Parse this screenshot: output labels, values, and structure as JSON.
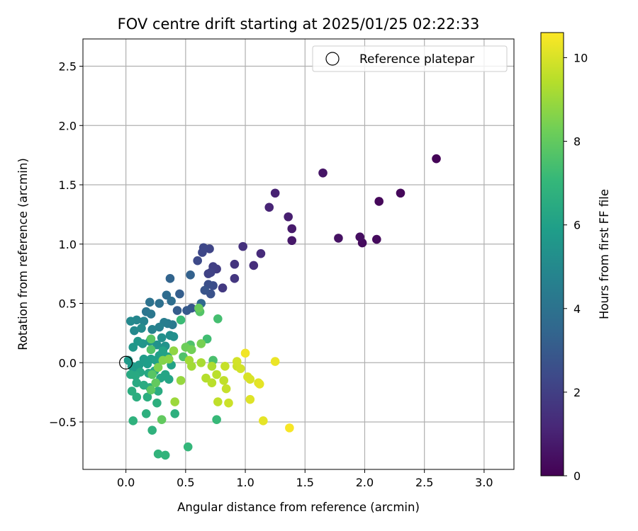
{
  "chart_data": {
    "type": "scatter",
    "title": "FOV centre drift starting at 2025/01/25 02:22:33",
    "xlabel": "Angular distance from reference (arcmin)",
    "ylabel": "Rotation from reference (arcmin)",
    "xlim": [
      -0.36,
      3.25
    ],
    "ylim": [
      -0.9,
      2.73
    ],
    "xticks": [
      0.0,
      0.5,
      1.0,
      1.5,
      2.0,
      2.5,
      3.0
    ],
    "xtick_labels": [
      "0.0",
      "0.5",
      "1.0",
      "1.5",
      "2.0",
      "2.5",
      "3.0"
    ],
    "yticks": [
      -0.5,
      0.0,
      0.5,
      1.0,
      1.5,
      2.0,
      2.5
    ],
    "ytick_labels": [
      "−0.5",
      "0.0",
      "0.5",
      "1.0",
      "1.5",
      "2.0",
      "2.5"
    ],
    "grid": true,
    "legend": {
      "position": "upper right",
      "entries": [
        "Reference platepar"
      ]
    },
    "colormap": "viridis",
    "colorbar": {
      "label": "Hours from first FF file",
      "range": [
        0,
        10.6
      ],
      "ticks": [
        0,
        2,
        4,
        6,
        8,
        10
      ],
      "tick_labels": [
        "0",
        "2",
        "4",
        "6",
        "8",
        "10"
      ]
    },
    "reference_point": {
      "x": 0.0,
      "y": 0.0,
      "label": "Reference platepar"
    },
    "points": [
      {
        "x": 2.6,
        "y": 1.72,
        "c": 0.1
      },
      {
        "x": 2.3,
        "y": 1.43,
        "c": 0.2
      },
      {
        "x": 2.12,
        "y": 1.36,
        "c": 0.2
      },
      {
        "x": 2.1,
        "y": 1.04,
        "c": 0.3
      },
      {
        "x": 1.98,
        "y": 1.01,
        "c": 0.3
      },
      {
        "x": 1.96,
        "y": 1.06,
        "c": 0.4
      },
      {
        "x": 1.78,
        "y": 1.05,
        "c": 0.5
      },
      {
        "x": 1.65,
        "y": 1.6,
        "c": 0.6
      },
      {
        "x": 1.39,
        "y": 1.03,
        "c": 0.7
      },
      {
        "x": 1.39,
        "y": 1.13,
        "c": 0.8
      },
      {
        "x": 1.36,
        "y": 1.23,
        "c": 0.9
      },
      {
        "x": 1.25,
        "y": 1.43,
        "c": 1.0
      },
      {
        "x": 1.2,
        "y": 1.31,
        "c": 1.1
      },
      {
        "x": 1.13,
        "y": 0.92,
        "c": 1.3
      },
      {
        "x": 1.07,
        "y": 0.82,
        "c": 1.4
      },
      {
        "x": 0.98,
        "y": 0.98,
        "c": 1.5
      },
      {
        "x": 0.91,
        "y": 0.83,
        "c": 1.6
      },
      {
        "x": 0.91,
        "y": 0.71,
        "c": 1.7
      },
      {
        "x": 0.81,
        "y": 0.63,
        "c": 1.8
      },
      {
        "x": 0.76,
        "y": 0.79,
        "c": 1.9
      },
      {
        "x": 0.73,
        "y": 0.81,
        "c": 2.0
      },
      {
        "x": 0.71,
        "y": 0.76,
        "c": 2.1
      },
      {
        "x": 0.69,
        "y": 0.75,
        "c": 2.1
      },
      {
        "x": 0.7,
        "y": 0.96,
        "c": 2.2
      },
      {
        "x": 0.65,
        "y": 0.97,
        "c": 2.3
      },
      {
        "x": 0.64,
        "y": 0.93,
        "c": 2.3
      },
      {
        "x": 0.6,
        "y": 0.86,
        "c": 2.4
      },
      {
        "x": 0.73,
        "y": 0.65,
        "c": 2.5
      },
      {
        "x": 0.69,
        "y": 0.66,
        "c": 2.6
      },
      {
        "x": 0.71,
        "y": 0.58,
        "c": 2.7
      },
      {
        "x": 0.66,
        "y": 0.61,
        "c": 2.8
      },
      {
        "x": 0.55,
        "y": 0.46,
        "c": 2.9
      },
      {
        "x": 0.51,
        "y": 0.44,
        "c": 3.0
      },
      {
        "x": 0.43,
        "y": 0.44,
        "c": 3.1
      },
      {
        "x": 0.45,
        "y": 0.58,
        "c": 3.2
      },
      {
        "x": 0.54,
        "y": 0.74,
        "c": 3.3
      },
      {
        "x": 0.37,
        "y": 0.71,
        "c": 3.4
      },
      {
        "x": 0.61,
        "y": 0.45,
        "c": 3.5
      },
      {
        "x": 0.63,
        "y": 0.5,
        "c": 3.6
      },
      {
        "x": 0.34,
        "y": 0.57,
        "c": 3.7
      },
      {
        "x": 0.38,
        "y": 0.52,
        "c": 3.8
      },
      {
        "x": 0.28,
        "y": 0.5,
        "c": 3.9
      },
      {
        "x": 0.2,
        "y": 0.51,
        "c": 4.0
      },
      {
        "x": 0.17,
        "y": 0.43,
        "c": 4.1
      },
      {
        "x": 0.21,
        "y": 0.41,
        "c": 4.2
      },
      {
        "x": 0.39,
        "y": 0.32,
        "c": 4.3
      },
      {
        "x": 0.35,
        "y": 0.33,
        "c": 4.4
      },
      {
        "x": 0.32,
        "y": 0.34,
        "c": 4.5
      },
      {
        "x": 0.28,
        "y": 0.3,
        "c": 4.6
      },
      {
        "x": 0.22,
        "y": 0.28,
        "c": 4.7
      },
      {
        "x": 0.15,
        "y": 0.35,
        "c": 4.8
      },
      {
        "x": 0.09,
        "y": 0.36,
        "c": 4.9
      },
      {
        "x": 0.04,
        "y": 0.35,
        "c": 5.0
      },
      {
        "x": 0.07,
        "y": 0.27,
        "c": 5.0
      },
      {
        "x": 0.13,
        "y": 0.29,
        "c": 5.1
      },
      {
        "x": 0.37,
        "y": 0.23,
        "c": 5.2
      },
      {
        "x": 0.4,
        "y": 0.22,
        "c": 5.3
      },
      {
        "x": 0.3,
        "y": 0.21,
        "c": 5.3
      },
      {
        "x": 0.33,
        "y": 0.14,
        "c": 5.4
      },
      {
        "x": 0.26,
        "y": 0.15,
        "c": 5.4
      },
      {
        "x": 0.2,
        "y": 0.18,
        "c": 5.5
      },
      {
        "x": 0.14,
        "y": 0.16,
        "c": 5.5
      },
      {
        "x": 0.1,
        "y": 0.18,
        "c": 5.6
      },
      {
        "x": 0.06,
        "y": 0.13,
        "c": 5.6
      },
      {
        "x": 0.02,
        "y": 0.02,
        "c": 5.7
      },
      {
        "x": 0.05,
        "y": -0.03,
        "c": 5.7
      },
      {
        "x": 0.08,
        "y": -0.06,
        "c": 5.8
      },
      {
        "x": 0.11,
        "y": -0.02,
        "c": 5.8
      },
      {
        "x": 0.15,
        "y": 0.03,
        "c": 5.8
      },
      {
        "x": 0.18,
        "y": -0.01,
        "c": 5.9
      },
      {
        "x": 0.21,
        "y": 0.03,
        "c": 5.9
      },
      {
        "x": 0.25,
        "y": 0.02,
        "c": 6.0
      },
      {
        "x": 0.28,
        "y": 0.06,
        "c": 6.0
      },
      {
        "x": 0.31,
        "y": 0.1,
        "c": 6.1
      },
      {
        "x": 0.35,
        "y": 0.05,
        "c": 6.1
      },
      {
        "x": 0.38,
        "y": -0.02,
        "c": 6.1
      },
      {
        "x": 0.33,
        "y": -0.1,
        "c": 6.2
      },
      {
        "x": 0.36,
        "y": -0.14,
        "c": 6.2
      },
      {
        "x": 0.29,
        "y": -0.13,
        "c": 6.2
      },
      {
        "x": 0.24,
        "y": -0.07,
        "c": 6.3
      },
      {
        "x": 0.19,
        "y": -0.09,
        "c": 6.3
      },
      {
        "x": 0.12,
        "y": -0.08,
        "c": 6.3
      },
      {
        "x": 0.08,
        "y": -0.11,
        "c": 6.4
      },
      {
        "x": 0.04,
        "y": -0.1,
        "c": 6.4
      },
      {
        "x": 0.09,
        "y": -0.17,
        "c": 6.4
      },
      {
        "x": 0.15,
        "y": -0.19,
        "c": 6.5
      },
      {
        "x": 0.2,
        "y": -0.21,
        "c": 6.5
      },
      {
        "x": 0.27,
        "y": -0.24,
        "c": 6.5
      },
      {
        "x": 0.05,
        "y": -0.24,
        "c": 6.6
      },
      {
        "x": 0.09,
        "y": -0.29,
        "c": 6.6
      },
      {
        "x": 0.18,
        "y": -0.29,
        "c": 6.6
      },
      {
        "x": 0.26,
        "y": -0.34,
        "c": 6.7
      },
      {
        "x": 0.17,
        "y": -0.43,
        "c": 6.7
      },
      {
        "x": 0.41,
        "y": -0.43,
        "c": 6.7
      },
      {
        "x": 0.06,
        "y": -0.49,
        "c": 6.8
      },
      {
        "x": 0.22,
        "y": -0.57,
        "c": 6.8
      },
      {
        "x": 0.27,
        "y": -0.77,
        "c": 6.9
      },
      {
        "x": 0.33,
        "y": -0.78,
        "c": 6.9
      },
      {
        "x": 0.52,
        "y": -0.71,
        "c": 7.0
      },
      {
        "x": 0.76,
        "y": -0.48,
        "c": 7.1
      },
      {
        "x": 0.46,
        "y": 0.36,
        "c": 7.2
      },
      {
        "x": 0.68,
        "y": 0.2,
        "c": 7.3
      },
      {
        "x": 0.77,
        "y": 0.37,
        "c": 7.4
      },
      {
        "x": 0.73,
        "y": 0.02,
        "c": 7.5
      },
      {
        "x": 0.48,
        "y": 0.05,
        "c": 7.6
      },
      {
        "x": 0.54,
        "y": 0.15,
        "c": 7.6
      },
      {
        "x": 0.62,
        "y": 0.43,
        "c": 7.7
      },
      {
        "x": 0.21,
        "y": 0.11,
        "c": 7.7
      },
      {
        "x": 0.21,
        "y": 0.2,
        "c": 7.8
      },
      {
        "x": 0.22,
        "y": -0.1,
        "c": 7.8
      },
      {
        "x": 0.21,
        "y": -0.23,
        "c": 7.9
      },
      {
        "x": 0.25,
        "y": -0.17,
        "c": 8.0
      },
      {
        "x": 0.3,
        "y": -0.48,
        "c": 8.0
      },
      {
        "x": 0.61,
        "y": 0.46,
        "c": 8.1
      },
      {
        "x": 0.5,
        "y": 0.13,
        "c": 8.2
      },
      {
        "x": 0.55,
        "y": 0.11,
        "c": 8.3
      },
      {
        "x": 0.63,
        "y": 0.16,
        "c": 8.4
      },
      {
        "x": 0.27,
        "y": -0.04,
        "c": 8.5
      },
      {
        "x": 0.31,
        "y": 0.02,
        "c": 8.6
      },
      {
        "x": 0.36,
        "y": 0.03,
        "c": 8.7
      },
      {
        "x": 0.4,
        "y": 0.1,
        "c": 8.8
      },
      {
        "x": 0.46,
        "y": -0.15,
        "c": 8.9
      },
      {
        "x": 0.41,
        "y": -0.33,
        "c": 9.0
      },
      {
        "x": 0.53,
        "y": 0.02,
        "c": 9.1
      },
      {
        "x": 0.55,
        "y": -0.03,
        "c": 9.1
      },
      {
        "x": 0.63,
        "y": 0.0,
        "c": 9.2
      },
      {
        "x": 0.72,
        "y": -0.03,
        "c": 9.3
      },
      {
        "x": 0.67,
        "y": -0.13,
        "c": 9.4
      },
      {
        "x": 0.72,
        "y": -0.17,
        "c": 9.5
      },
      {
        "x": 0.76,
        "y": -0.1,
        "c": 9.5
      },
      {
        "x": 0.77,
        "y": -0.33,
        "c": 9.6
      },
      {
        "x": 0.82,
        "y": -0.15,
        "c": 9.6
      },
      {
        "x": 0.83,
        "y": -0.03,
        "c": 9.7
      },
      {
        "x": 0.84,
        "y": -0.22,
        "c": 9.7
      },
      {
        "x": 0.86,
        "y": -0.34,
        "c": 9.8
      },
      {
        "x": 0.93,
        "y": -0.03,
        "c": 9.8
      },
      {
        "x": 0.96,
        "y": -0.05,
        "c": 9.9
      },
      {
        "x": 0.93,
        "y": 0.01,
        "c": 9.9
      },
      {
        "x": 1.02,
        "y": -0.12,
        "c": 10.0
      },
      {
        "x": 1.04,
        "y": -0.14,
        "c": 10.0
      },
      {
        "x": 1.04,
        "y": -0.31,
        "c": 10.1
      },
      {
        "x": 1.11,
        "y": -0.17,
        "c": 10.1
      },
      {
        "x": 1.12,
        "y": -0.18,
        "c": 10.2
      },
      {
        "x": 1.15,
        "y": -0.49,
        "c": 10.2
      },
      {
        "x": 1.25,
        "y": 0.01,
        "c": 10.3
      },
      {
        "x": 1.0,
        "y": 0.08,
        "c": 10.4
      },
      {
        "x": 1.37,
        "y": -0.55,
        "c": 10.5
      }
    ]
  }
}
